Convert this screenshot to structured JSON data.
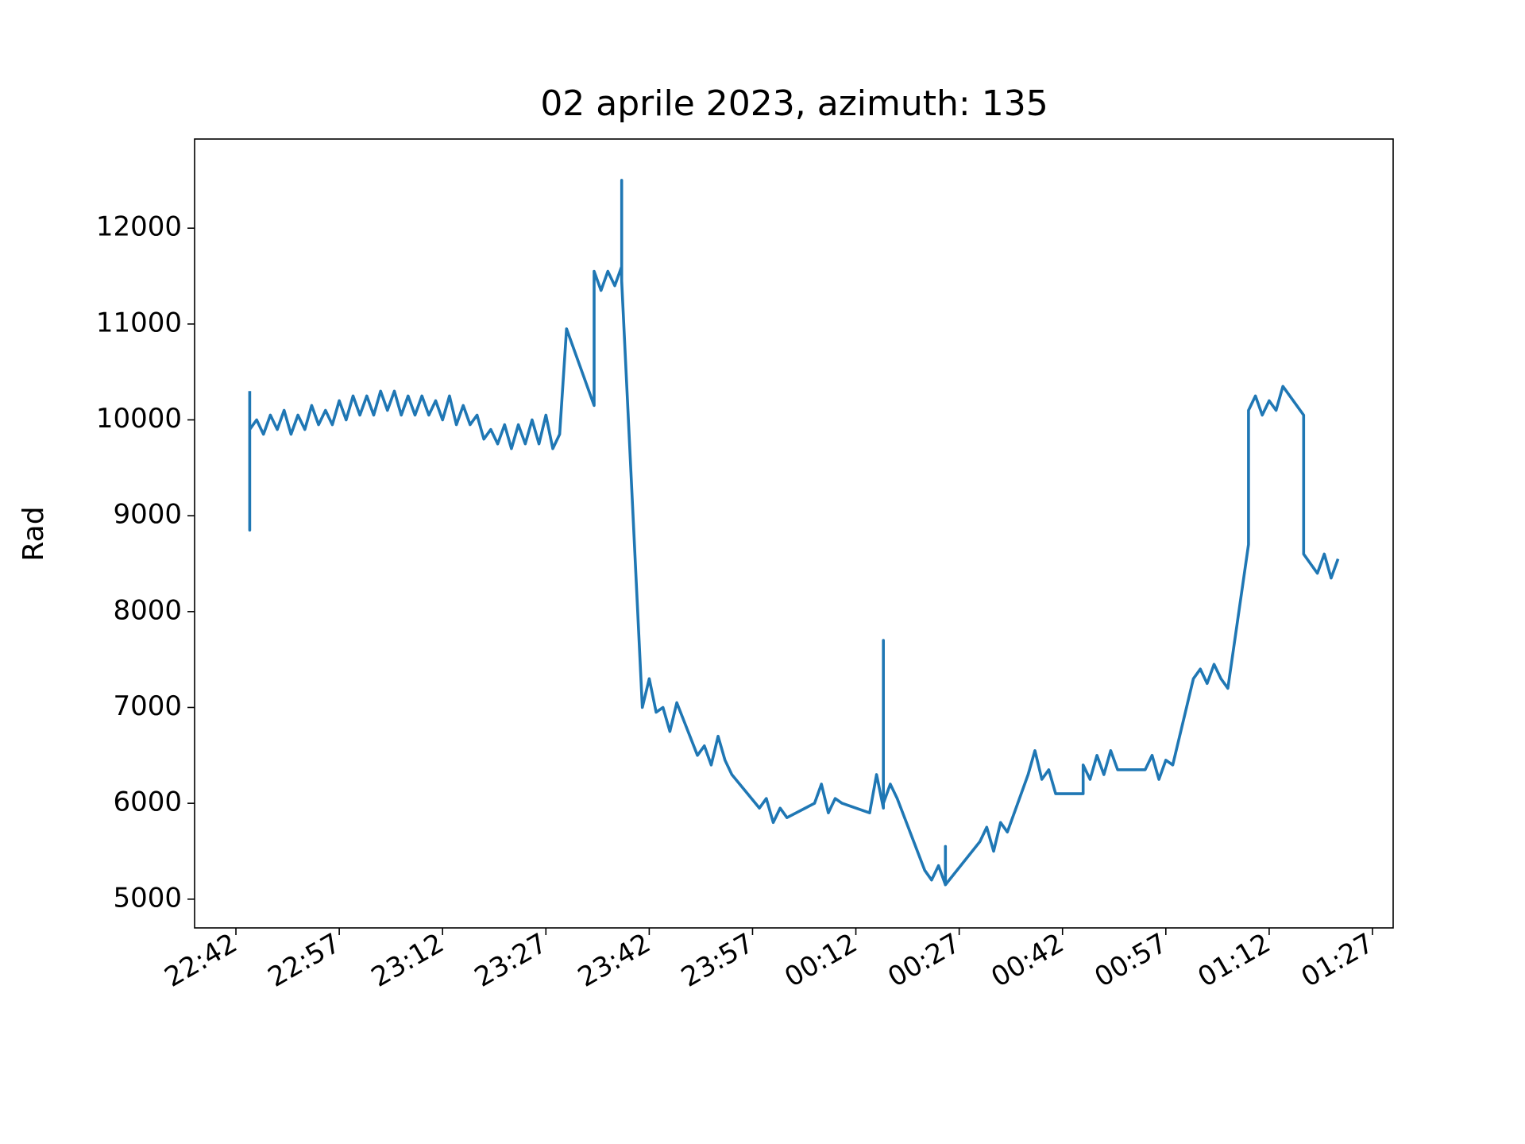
{
  "chart_data": {
    "type": "line",
    "title": "02 aprile 2023, azimuth: 135",
    "y_label": "Rad",
    "color": "#1f77b4",
    "x": [
      "22:44",
      "22:44",
      "22:44",
      "22:45",
      "22:46",
      "22:47",
      "22:48",
      "22:49",
      "22:50",
      "22:51",
      "22:52",
      "22:53",
      "22:54",
      "22:55",
      "22:56",
      "22:57",
      "22:58",
      "22:59",
      "23:00",
      "23:01",
      "23:02",
      "23:03",
      "23:04",
      "23:05",
      "23:06",
      "23:07",
      "23:08",
      "23:09",
      "23:10",
      "23:11",
      "23:12",
      "23:13",
      "23:14",
      "23:15",
      "23:16",
      "23:17",
      "23:18",
      "23:19",
      "23:20",
      "23:21",
      "23:22",
      "23:23",
      "23:24",
      "23:25",
      "23:26",
      "23:27",
      "23:28",
      "23:29",
      "23:30",
      "23:34",
      "23:34",
      "23:35",
      "23:36",
      "23:37",
      "23:38",
      "23:38",
      "23:38",
      "23:41",
      "23:42",
      "23:43",
      "23:44",
      "23:45",
      "23:46",
      "23:49",
      "23:50",
      "23:51",
      "23:52",
      "23:53",
      "23:54",
      "23:58",
      "23:59",
      "00:00",
      "00:01",
      "00:02",
      "00:06",
      "00:07",
      "00:08",
      "00:09",
      "00:10",
      "00:14",
      "00:15",
      "00:16",
      "00:16",
      "00:16",
      "00:17",
      "00:18",
      "00:22",
      "00:23",
      "00:24",
      "00:25",
      "00:25",
      "00:25",
      "00:30",
      "00:31",
      "00:32",
      "00:33",
      "00:34",
      "00:37",
      "00:38",
      "00:39",
      "00:40",
      "00:41",
      "00:42",
      "00:45",
      "00:45",
      "00:46",
      "00:47",
      "00:48",
      "00:49",
      "00:50",
      "00:54",
      "00:55",
      "00:56",
      "00:57",
      "00:58",
      "01:01",
      "01:02",
      "01:03",
      "01:04",
      "01:05",
      "01:06",
      "01:09",
      "01:09",
      "01:10",
      "01:11",
      "01:12",
      "01:13",
      "01:14",
      "01:17",
      "01:17",
      "01:18",
      "01:19",
      "01:20",
      "01:21",
      "01:22"
    ],
    "values": [
      10300,
      8850,
      9900,
      10000,
      9850,
      10050,
      9900,
      10100,
      9850,
      10050,
      9900,
      10150,
      9950,
      10100,
      9950,
      10200,
      10000,
      10250,
      10050,
      10250,
      10050,
      10300,
      10100,
      10300,
      10050,
      10250,
      10050,
      10250,
      10050,
      10200,
      10000,
      10250,
      9950,
      10150,
      9950,
      10050,
      9800,
      9900,
      9750,
      9950,
      9700,
      9950,
      9750,
      10000,
      9750,
      10050,
      9700,
      9850,
      10950,
      10150,
      11550,
      11350,
      11550,
      11400,
      11600,
      12500,
      11450,
      7000,
      7300,
      6950,
      7000,
      6750,
      7050,
      6500,
      6600,
      6400,
      6700,
      6450,
      6300,
      5950,
      6050,
      5800,
      5950,
      5850,
      6000,
      6200,
      5900,
      6050,
      6000,
      5900,
      6300,
      5950,
      7700,
      6000,
      6200,
      6050,
      5300,
      5200,
      5350,
      5150,
      5550,
      5150,
      5600,
      5750,
      5500,
      5800,
      5700,
      6300,
      6550,
      6250,
      6350,
      6100,
      6100,
      6100,
      6400,
      6250,
      6500,
      6300,
      6550,
      6350,
      6350,
      6500,
      6250,
      6450,
      6400,
      7300,
      7400,
      7250,
      7450,
      7300,
      7200,
      8700,
      10100,
      10250,
      10050,
      10200,
      10100,
      10350,
      10050,
      8600,
      8500,
      8400,
      8600,
      8350,
      8550
    ],
    "xlim": [
      "22:36",
      "01:30"
    ],
    "xticks": [
      "22:42",
      "22:57",
      "23:12",
      "23:27",
      "23:42",
      "23:57",
      "00:12",
      "00:27",
      "00:42",
      "00:57",
      "01:12",
      "01:27"
    ],
    "ylim": [
      4700,
      12930
    ],
    "yticks": [
      5000,
      6000,
      7000,
      8000,
      9000,
      10000,
      11000,
      12000
    ]
  }
}
